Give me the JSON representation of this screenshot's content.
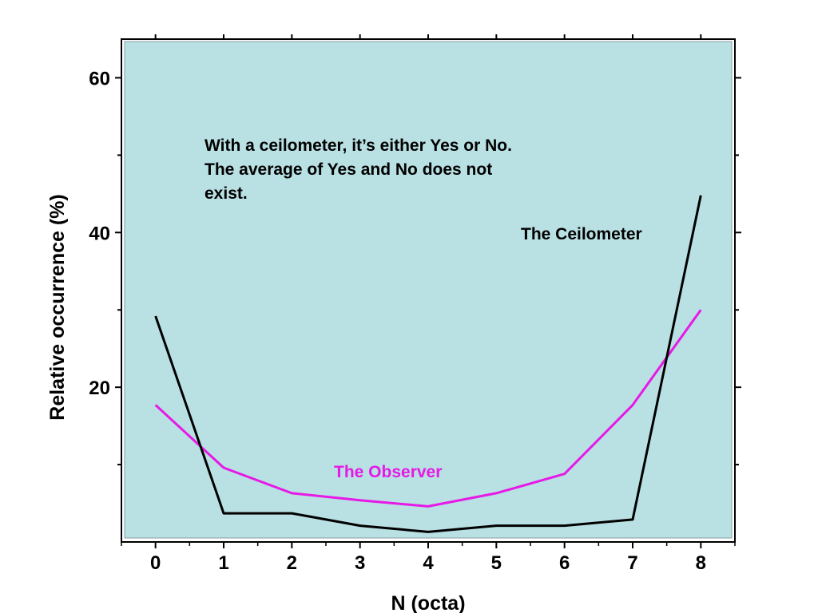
{
  "chart_data": {
    "type": "line",
    "title": "",
    "xlabel": "N (octa)",
    "ylabel": "Relative occurrence (%)",
    "x": [
      0,
      1,
      2,
      3,
      4,
      5,
      6,
      7,
      8
    ],
    "xlim": [
      -0.5,
      8.5
    ],
    "ylim": [
      0,
      65
    ],
    "xticks": [
      "0",
      "1",
      "2",
      "3",
      "4",
      "5",
      "6",
      "7",
      "8"
    ],
    "yticks": [
      {
        "value": 20,
        "label": "20"
      },
      {
        "value": 40,
        "label": "40"
      },
      {
        "value": 60,
        "label": "60"
      }
    ],
    "grid": false,
    "legend": "none",
    "background_color": "#b9e0e3",
    "series": [
      {
        "name": "The Ceilometer",
        "color": "#000000",
        "values": [
          29.2,
          3.7,
          3.7,
          2.1,
          1.3,
          2.1,
          2.1,
          2.9,
          44.8
        ]
      },
      {
        "name": "The Observer",
        "color": "#e619e6",
        "values": [
          17.7,
          9.6,
          6.3,
          5.4,
          4.6,
          6.3,
          8.8,
          17.7,
          30.0
        ]
      }
    ],
    "annotations": {
      "note_lines": [
        "With a ceilometer, it’s either Yes or No.",
        "The average of Yes and No does not",
        "exist."
      ]
    }
  }
}
